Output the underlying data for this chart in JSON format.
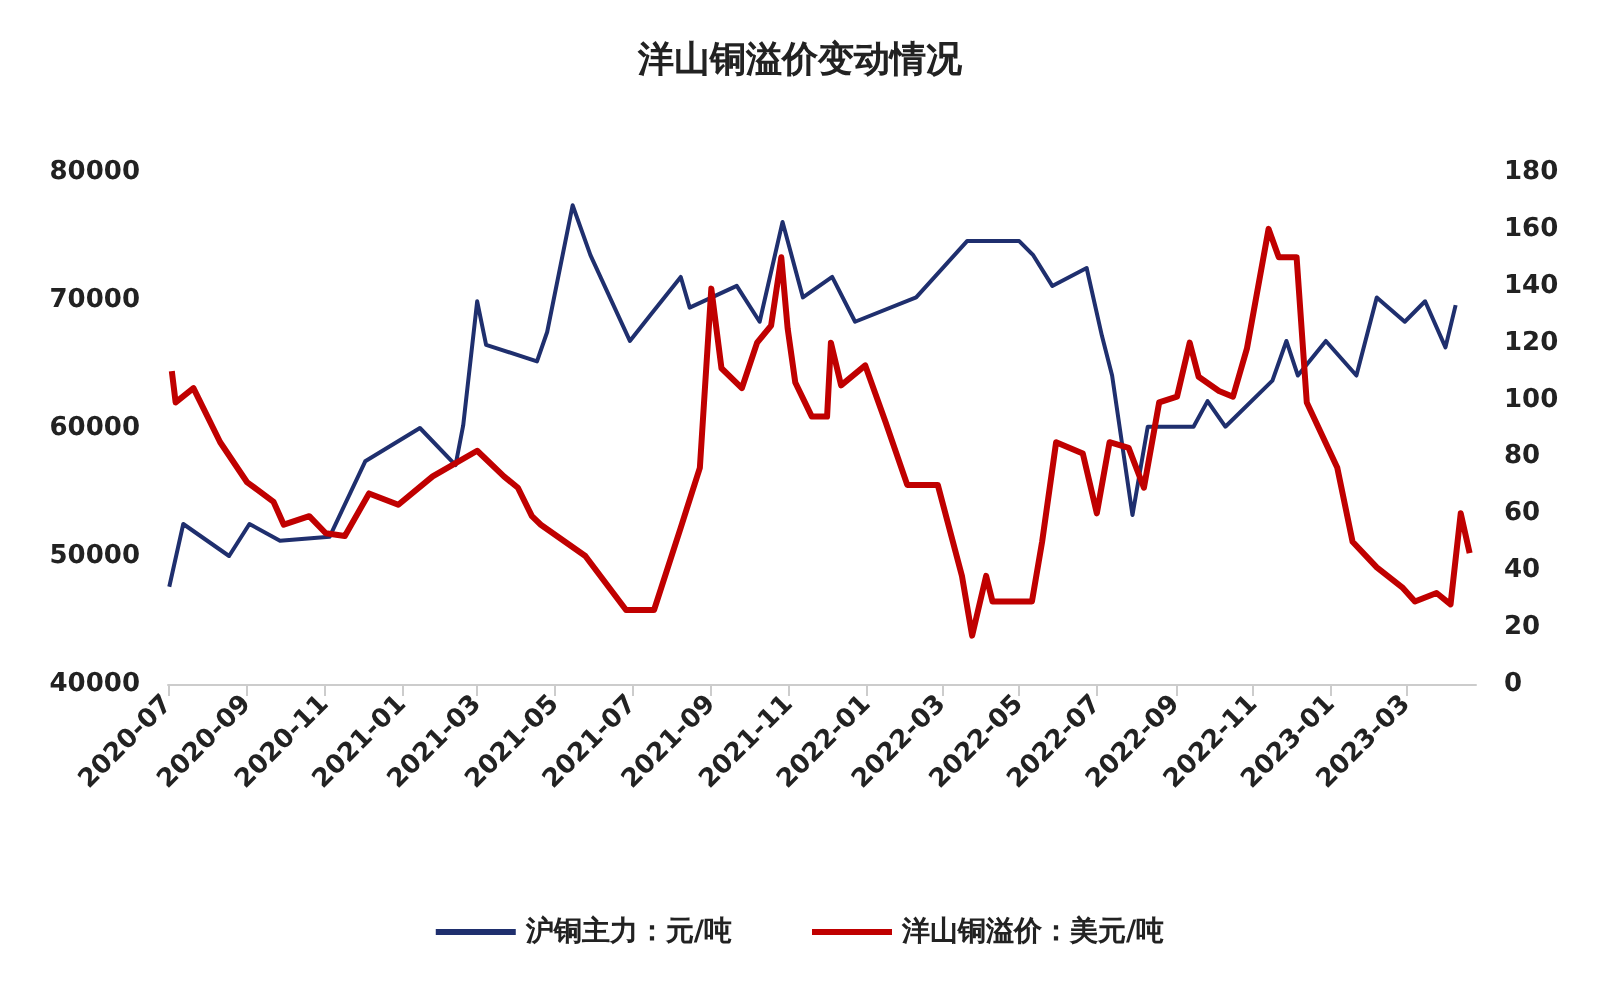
{
  "chart_data": {
    "type": "line",
    "title": "洋山铜溢价变动情况",
    "xlim": [
      "2020-07-01",
      "2023-04-25"
    ],
    "xticks": [
      "2020-07",
      "2020-09",
      "2020-11",
      "2021-01",
      "2021-03",
      "2021-05",
      "2021-07",
      "2021-09",
      "2021-11",
      "2022-01",
      "2022-03",
      "2022-05",
      "2022-07",
      "2022-09",
      "2022-11",
      "2023-01",
      "2023-03"
    ],
    "ylim": [
      40000,
      80000
    ],
    "yticks": [
      40000,
      50000,
      60000,
      70000,
      80000
    ],
    "y2lim": [
      0,
      180
    ],
    "y2ticks": [
      0,
      20,
      40,
      60,
      80,
      100,
      120,
      140,
      160,
      180
    ],
    "grid": false,
    "legend": "bottom",
    "marker": "none",
    "line_style": "solid",
    "series": [
      {
        "name": "沪铜主力：元/吨",
        "color": "#1f2f6e",
        "x": [
          "2020-07-02",
          "2020-07-13",
          "2020-08-18",
          "2020-09-03",
          "2020-09-27",
          "2020-11-05",
          "2020-12-03",
          "2021-01-15",
          "2021-02-12",
          "2021-02-18",
          "2021-03-01",
          "2021-03-08",
          "2021-04-17",
          "2021-04-25",
          "2021-05-15",
          "2021-05-29",
          "2021-06-29",
          "2021-07-15",
          "2021-08-08",
          "2021-08-15",
          "2021-09-21",
          "2021-10-09",
          "2021-10-27",
          "2021-11-12",
          "2021-12-05",
          "2021-12-23",
          "2022-02-09",
          "2022-03-21",
          "2022-05-01",
          "2022-05-12",
          "2022-05-27",
          "2022-06-23",
          "2022-07-05",
          "2022-07-13",
          "2022-07-29",
          "2022-08-10",
          "2022-09-15",
          "2022-09-26",
          "2022-10-10",
          "2022-11-16",
          "2022-11-27",
          "2022-12-06",
          "2022-12-28",
          "2023-01-21",
          "2023-02-06",
          "2023-02-28",
          "2023-03-16",
          "2023-04-01",
          "2023-04-09"
        ],
        "values": [
          47600,
          52500,
          50000,
          52500,
          51200,
          51500,
          57400,
          60000,
          57100,
          60200,
          69900,
          66500,
          65200,
          67500,
          77400,
          73500,
          66800,
          68800,
          71800,
          69400,
          71100,
          68300,
          76100,
          70200,
          71800,
          68300,
          70200,
          74600,
          74600,
          73500,
          71100,
          72500,
          67200,
          64100,
          53200,
          60100,
          60100,
          62100,
          60100,
          63700,
          66800,
          64100,
          66800,
          64100,
          70200,
          68300,
          69900,
          66300,
          69600
        ]
      },
      {
        "name": "洋山铜溢价：美元/吨",
        "color": "#c00000",
        "axis": "y2",
        "x": [
          "2020-07-04",
          "2020-07-07",
          "2020-07-21",
          "2020-08-11",
          "2020-09-01",
          "2020-09-22",
          "2020-09-30",
          "2020-10-20",
          "2020-11-02",
          "2020-11-17",
          "2020-12-06",
          "2020-12-29",
          "2021-01-25",
          "2021-03-01",
          "2021-03-22",
          "2021-04-02",
          "2021-04-13",
          "2021-04-20",
          "2021-05-25",
          "2021-06-26",
          "2021-07-18",
          "2021-08-08",
          "2021-08-23",
          "2021-09-01",
          "2021-09-09",
          "2021-09-25",
          "2021-10-07",
          "2021-10-18",
          "2021-10-26",
          "2021-10-31",
          "2021-11-06",
          "2021-11-19",
          "2021-12-01",
          "2021-12-04",
          "2021-12-12",
          "2021-12-31",
          "2022-01-16",
          "2022-02-02",
          "2022-02-26",
          "2022-03-17",
          "2022-03-25",
          "2022-04-05",
          "2022-04-10",
          "2022-05-11",
          "2022-05-19",
          "2022-05-30",
          "2022-06-20",
          "2022-07-01",
          "2022-07-11",
          "2022-07-26",
          "2022-08-07",
          "2022-08-19",
          "2022-09-02",
          "2022-09-12",
          "2022-09-19",
          "2022-10-05",
          "2022-10-16",
          "2022-10-27",
          "2022-11-13",
          "2022-11-21",
          "2022-12-05",
          "2022-12-13",
          "2023-01-06",
          "2023-01-18",
          "2023-02-06",
          "2023-02-26",
          "2023-03-08",
          "2023-03-25",
          "2023-04-05",
          "2023-04-13",
          "2023-04-20"
        ],
        "values": [
          110,
          99,
          104,
          85,
          71,
          64,
          56,
          59,
          53,
          52,
          67,
          63,
          73,
          82,
          73,
          69,
          59,
          56,
          45,
          26,
          26,
          55,
          76,
          139,
          111,
          104,
          120,
          126,
          150,
          125,
          106,
          94,
          94,
          120,
          105,
          112,
          92,
          70,
          70,
          38,
          17,
          38,
          29,
          29,
          50,
          85,
          81,
          60,
          85,
          83,
          69,
          99,
          101,
          120,
          108,
          103,
          101,
          118,
          160,
          150,
          150,
          99,
          76,
          50,
          41,
          34,
          29,
          32,
          28,
          60,
          46
        ]
      }
    ]
  }
}
